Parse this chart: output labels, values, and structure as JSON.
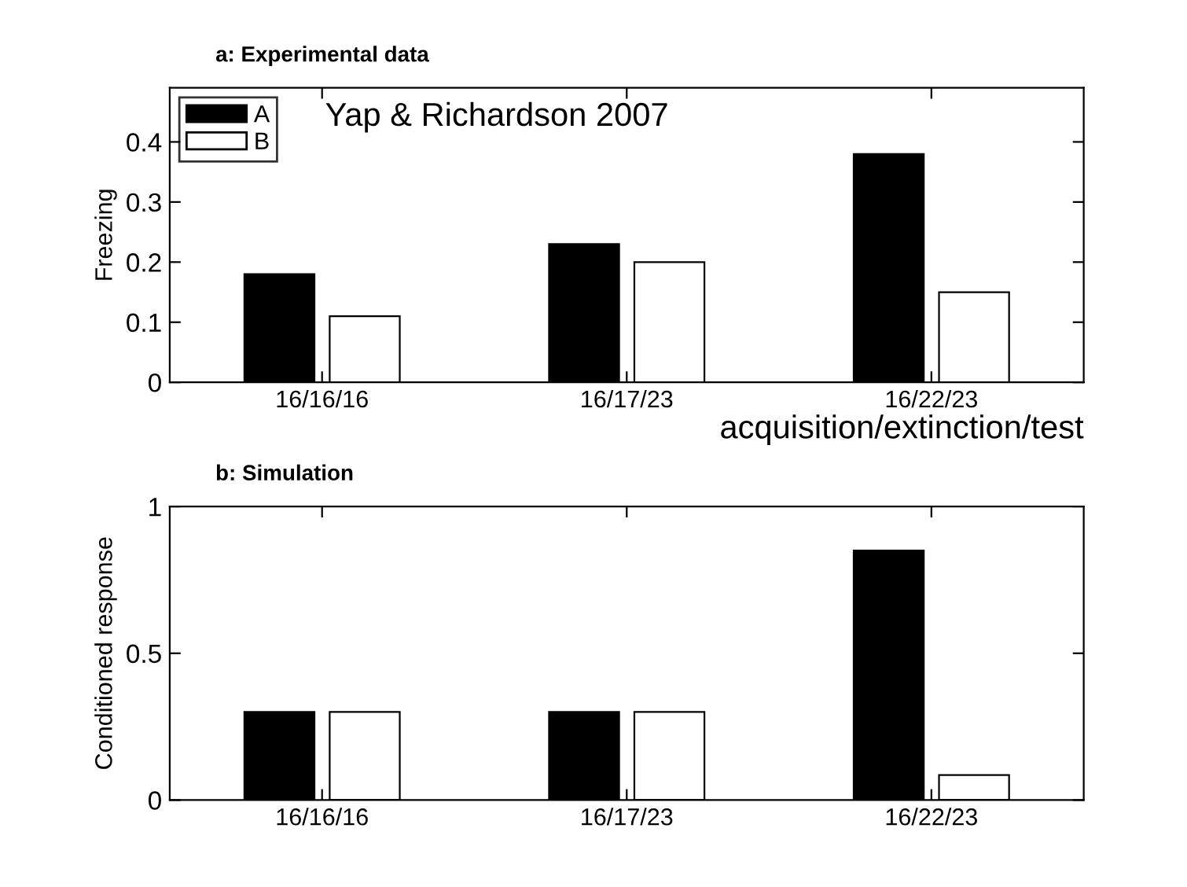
{
  "chart_data": [
    {
      "type": "bar",
      "title": "a: Experimental data",
      "xlabel": "acquisition/extinction/test",
      "ylabel": "Freezing",
      "categories": [
        "16/16/16",
        "16/17/23",
        "16/22/23"
      ],
      "series": [
        {
          "name": "A",
          "color": "#000000",
          "values": [
            0.18,
            0.23,
            0.38
          ]
        },
        {
          "name": "B",
          "color": "#ffffff",
          "values": [
            0.11,
            0.2,
            0.15
          ]
        }
      ],
      "ylim": [
        0,
        0.49
      ],
      "yticks": [
        0,
        0.1,
        0.2,
        0.3,
        0.4
      ],
      "legend": "top left",
      "grid": false,
      "annotations": [
        "Yap & Richardson 2007"
      ]
    },
    {
      "type": "bar",
      "title": "b: Simulation",
      "ylabel": "Conditioned response",
      "categories": [
        "16/16/16",
        "16/17/23",
        "16/22/23"
      ],
      "series": [
        {
          "color": "#000000",
          "values": [
            0.3,
            0.3,
            0.85
          ]
        },
        {
          "color": "#ffffff",
          "values": [
            0.3,
            0.3,
            0.085
          ]
        }
      ],
      "ylim": [
        0,
        1
      ],
      "yticks": [
        0,
        0.5,
        1
      ],
      "legend": false,
      "grid": false
    }
  ]
}
